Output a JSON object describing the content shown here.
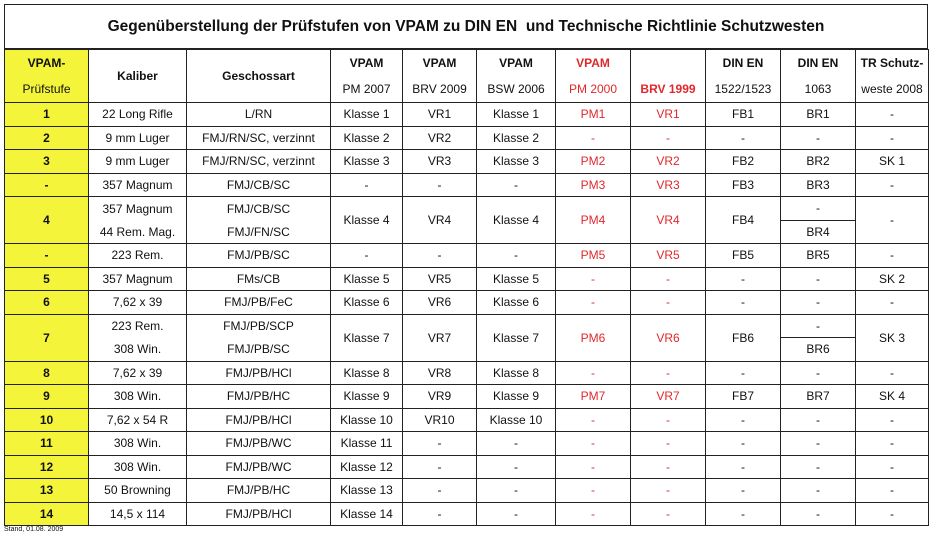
{
  "title": "Gegenüberstellung der Prüfstufen von VPAM zu DIN EN  und Technische Richtlinie Schutzwesten",
  "table": {
    "header": [
      [
        "VPAM-",
        "Prüfstufe"
      ],
      [
        "Kaliber"
      ],
      [
        "Geschossart"
      ],
      [
        "VPAM",
        "PM 2007"
      ],
      [
        "VPAM",
        "BRV 2009"
      ],
      [
        "VPAM",
        "BSW 2006"
      ],
      [
        "VPAM",
        "PM 2000"
      ],
      [
        "BRV 1999"
      ],
      [
        "DIN EN",
        "1522/1523"
      ],
      [
        "DIN EN",
        "1063"
      ],
      [
        "TR Schutz-",
        "weste 2008"
      ]
    ],
    "rows": [
      [
        "1",
        "22 Long Rifle",
        "L/RN",
        "Klasse 1",
        "VR1",
        "Klasse 1",
        "PM1",
        "VR1",
        "FB1",
        "BR1",
        "-"
      ],
      [
        "2",
        "9 mm Luger",
        "FMJ/RN/SC, verzinnt",
        "Klasse 2",
        "VR2",
        "Klasse 2",
        "-",
        "-",
        "-",
        "-",
        "-"
      ],
      [
        "3",
        "9 mm Luger",
        "FMJ/RN/SC, verzinnt",
        "Klasse 3",
        "VR3",
        "Klasse 3",
        "PM2",
        "VR2",
        "FB2",
        "BR2",
        "SK 1"
      ],
      [
        "-",
        "357 Magnum",
        "FMJ/CB/SC",
        "-",
        "-",
        "-",
        "PM3",
        "VR3",
        "FB3",
        "BR3",
        "-"
      ],
      [
        "4",
        [
          "357 Magnum",
          "44 Rem. Mag."
        ],
        [
          "FMJ/CB/SC",
          "FMJ/FN/SC"
        ],
        "Klasse 4",
        "VR4",
        "Klasse 4",
        "PM4",
        "VR4",
        "FB4",
        [
          "-",
          "BR4"
        ],
        "-"
      ],
      [
        "-",
        "223 Rem.",
        "FMJ/PB/SC",
        "-",
        "-",
        "-",
        "PM5",
        "VR5",
        "FB5",
        "BR5",
        "-"
      ],
      [
        "5",
        "357 Magnum",
        "FMs/CB",
        "Klasse 5",
        "VR5",
        "Klasse 5",
        "-",
        "-",
        "-",
        "-",
        "SK 2"
      ],
      [
        "6",
        "7,62 x 39",
        "FMJ/PB/FeC",
        "Klasse 6",
        "VR6",
        "Klasse 6",
        "-",
        "-",
        "-",
        "-",
        "-"
      ],
      [
        "7",
        [
          "223 Rem.",
          "308 Win."
        ],
        [
          "FMJ/PB/SCP",
          "FMJ/PB/SC"
        ],
        "Klasse 7",
        "VR7",
        "Klasse 7",
        "PM6",
        "VR6",
        "FB6",
        [
          "-",
          "BR6"
        ],
        "SK 3"
      ],
      [
        "8",
        "7,62 x 39",
        "FMJ/PB/HCl",
        "Klasse 8",
        "VR8",
        "Klasse 8",
        "-",
        "-",
        "-",
        "-",
        "-"
      ],
      [
        "9",
        "308 Win.",
        "FMJ/PB/HC",
        "Klasse 9",
        "VR9",
        "Klasse 9",
        "PM7",
        "VR7",
        "FB7",
        "BR7",
        "SK 4"
      ],
      [
        "10",
        "7,62 x 54 R",
        "FMJ/PB/HCl",
        "Klasse 10",
        "VR10",
        "Klasse 10",
        "-",
        "-",
        "-",
        "-",
        "-"
      ],
      [
        "11",
        "308 Win.",
        "FMJ/PB/WC",
        "Klasse 11",
        "-",
        "-",
        "-",
        "-",
        "-",
        "-",
        "-"
      ],
      [
        "12",
        "308 Win.",
        "FMJ/PB/WC",
        "Klasse 12",
        "-",
        "-",
        "-",
        "-",
        "-",
        "-",
        "-"
      ],
      [
        "13",
        "50 Browning",
        "FMJ/PB/HC",
        "Klasse 13",
        "-",
        "-",
        "-",
        "-",
        "-",
        "-",
        "-"
      ],
      [
        "14",
        "14,5 x 114",
        "FMJ/PB/HCl",
        "Klasse 14",
        "-",
        "-",
        "-",
        "-",
        "-",
        "-",
        "-"
      ]
    ]
  },
  "footer": "Stand, 01.08. 2009"
}
